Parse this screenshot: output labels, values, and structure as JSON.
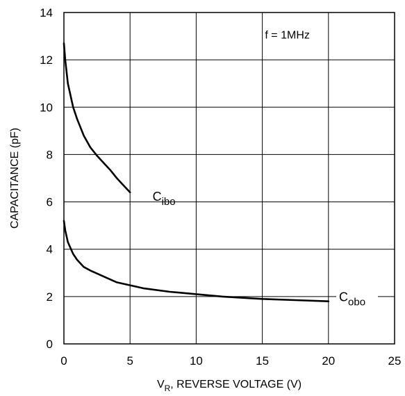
{
  "chart_data": {
    "type": "line",
    "title": "",
    "xlabel": {
      "main": "V",
      "sub": "R",
      "rest": ", REVERSE VOLTAGE (V)"
    },
    "ylabel": "CAPACITANCE (pF)",
    "xlim": [
      0,
      25
    ],
    "ylim": [
      0,
      14
    ],
    "xticks": [
      0,
      5,
      10,
      15,
      20,
      25
    ],
    "yticks": [
      0,
      2,
      4,
      6,
      8,
      10,
      12,
      14
    ],
    "grid": true,
    "annotation": "f = 1MHz",
    "series": [
      {
        "name": "C",
        "subscript": "ibo",
        "x": [
          0,
          0.1,
          0.3,
          0.7,
          1.0,
          1.5,
          2.0,
          2.5,
          3.0,
          3.5,
          4.0,
          4.5,
          5.0
        ],
        "y": [
          12.7,
          12.0,
          11.0,
          10.0,
          9.5,
          8.8,
          8.3,
          7.95,
          7.65,
          7.35,
          7.0,
          6.7,
          6.4
        ]
      },
      {
        "name": "C",
        "subscript": "obo",
        "x": [
          0,
          0.1,
          0.3,
          0.7,
          1.0,
          1.5,
          2.0,
          3.0,
          4.0,
          6.0,
          8.0,
          10.0,
          12.0,
          15.0,
          17.5,
          20.0
        ],
        "y": [
          5.2,
          4.8,
          4.3,
          3.8,
          3.55,
          3.25,
          3.1,
          2.85,
          2.6,
          2.35,
          2.2,
          2.1,
          2.0,
          1.9,
          1.85,
          1.8
        ]
      }
    ],
    "colors": {
      "line": "#000000",
      "grid": "#000000",
      "background": "#ffffff"
    }
  }
}
